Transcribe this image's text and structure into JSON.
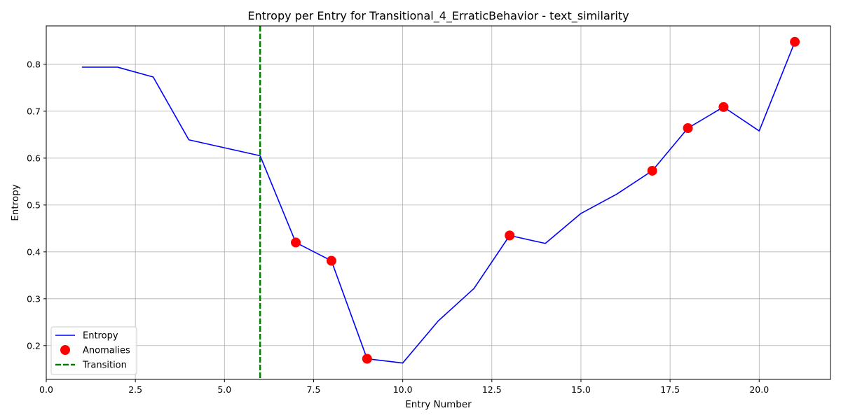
{
  "chart_data": {
    "type": "line",
    "title": "Entropy per Entry for Transitional_4_ErraticBehavior - text_similarity",
    "xlabel": "Entry Number",
    "ylabel": "Entropy",
    "xlim": [
      0,
      22.0
    ],
    "ylim": [
      0.128,
      0.882
    ],
    "x_ticks": [
      0.0,
      2.5,
      5.0,
      7.5,
      10.0,
      12.5,
      15.0,
      17.5,
      20.0
    ],
    "x_tick_labels": [
      "0.0",
      "2.5",
      "5.0",
      "7.5",
      "10.0",
      "12.5",
      "15.0",
      "17.5",
      "20.0"
    ],
    "y_ticks": [
      0.2,
      0.3,
      0.4,
      0.5,
      0.6,
      0.7,
      0.8
    ],
    "y_tick_labels": [
      "0.2",
      "0.3",
      "0.4",
      "0.5",
      "0.6",
      "0.7",
      "0.8"
    ],
    "grid": true,
    "legend_position": "lower-left",
    "series": [
      {
        "name": "Entropy",
        "kind": "line",
        "color": "#0000ff",
        "x": [
          1,
          2,
          3,
          4,
          5,
          6,
          7,
          8,
          9,
          10,
          11,
          12,
          13,
          14,
          15,
          16,
          17,
          18,
          19,
          20,
          21
        ],
        "y": [
          0.794,
          0.794,
          0.773,
          0.639,
          0.622,
          0.605,
          0.42,
          0.381,
          0.172,
          0.163,
          0.253,
          0.322,
          0.435,
          0.418,
          0.482,
          0.523,
          0.573,
          0.664,
          0.709,
          0.658,
          0.848
        ]
      },
      {
        "name": "Anomalies",
        "kind": "scatter",
        "color": "#ff0000",
        "x": [
          7,
          8,
          9,
          13,
          17,
          18,
          19,
          21
        ],
        "y": [
          0.42,
          0.381,
          0.172,
          0.435,
          0.573,
          0.664,
          0.709,
          0.848
        ]
      },
      {
        "name": "Transition",
        "kind": "vline",
        "color": "#008000",
        "x": 6
      }
    ]
  }
}
